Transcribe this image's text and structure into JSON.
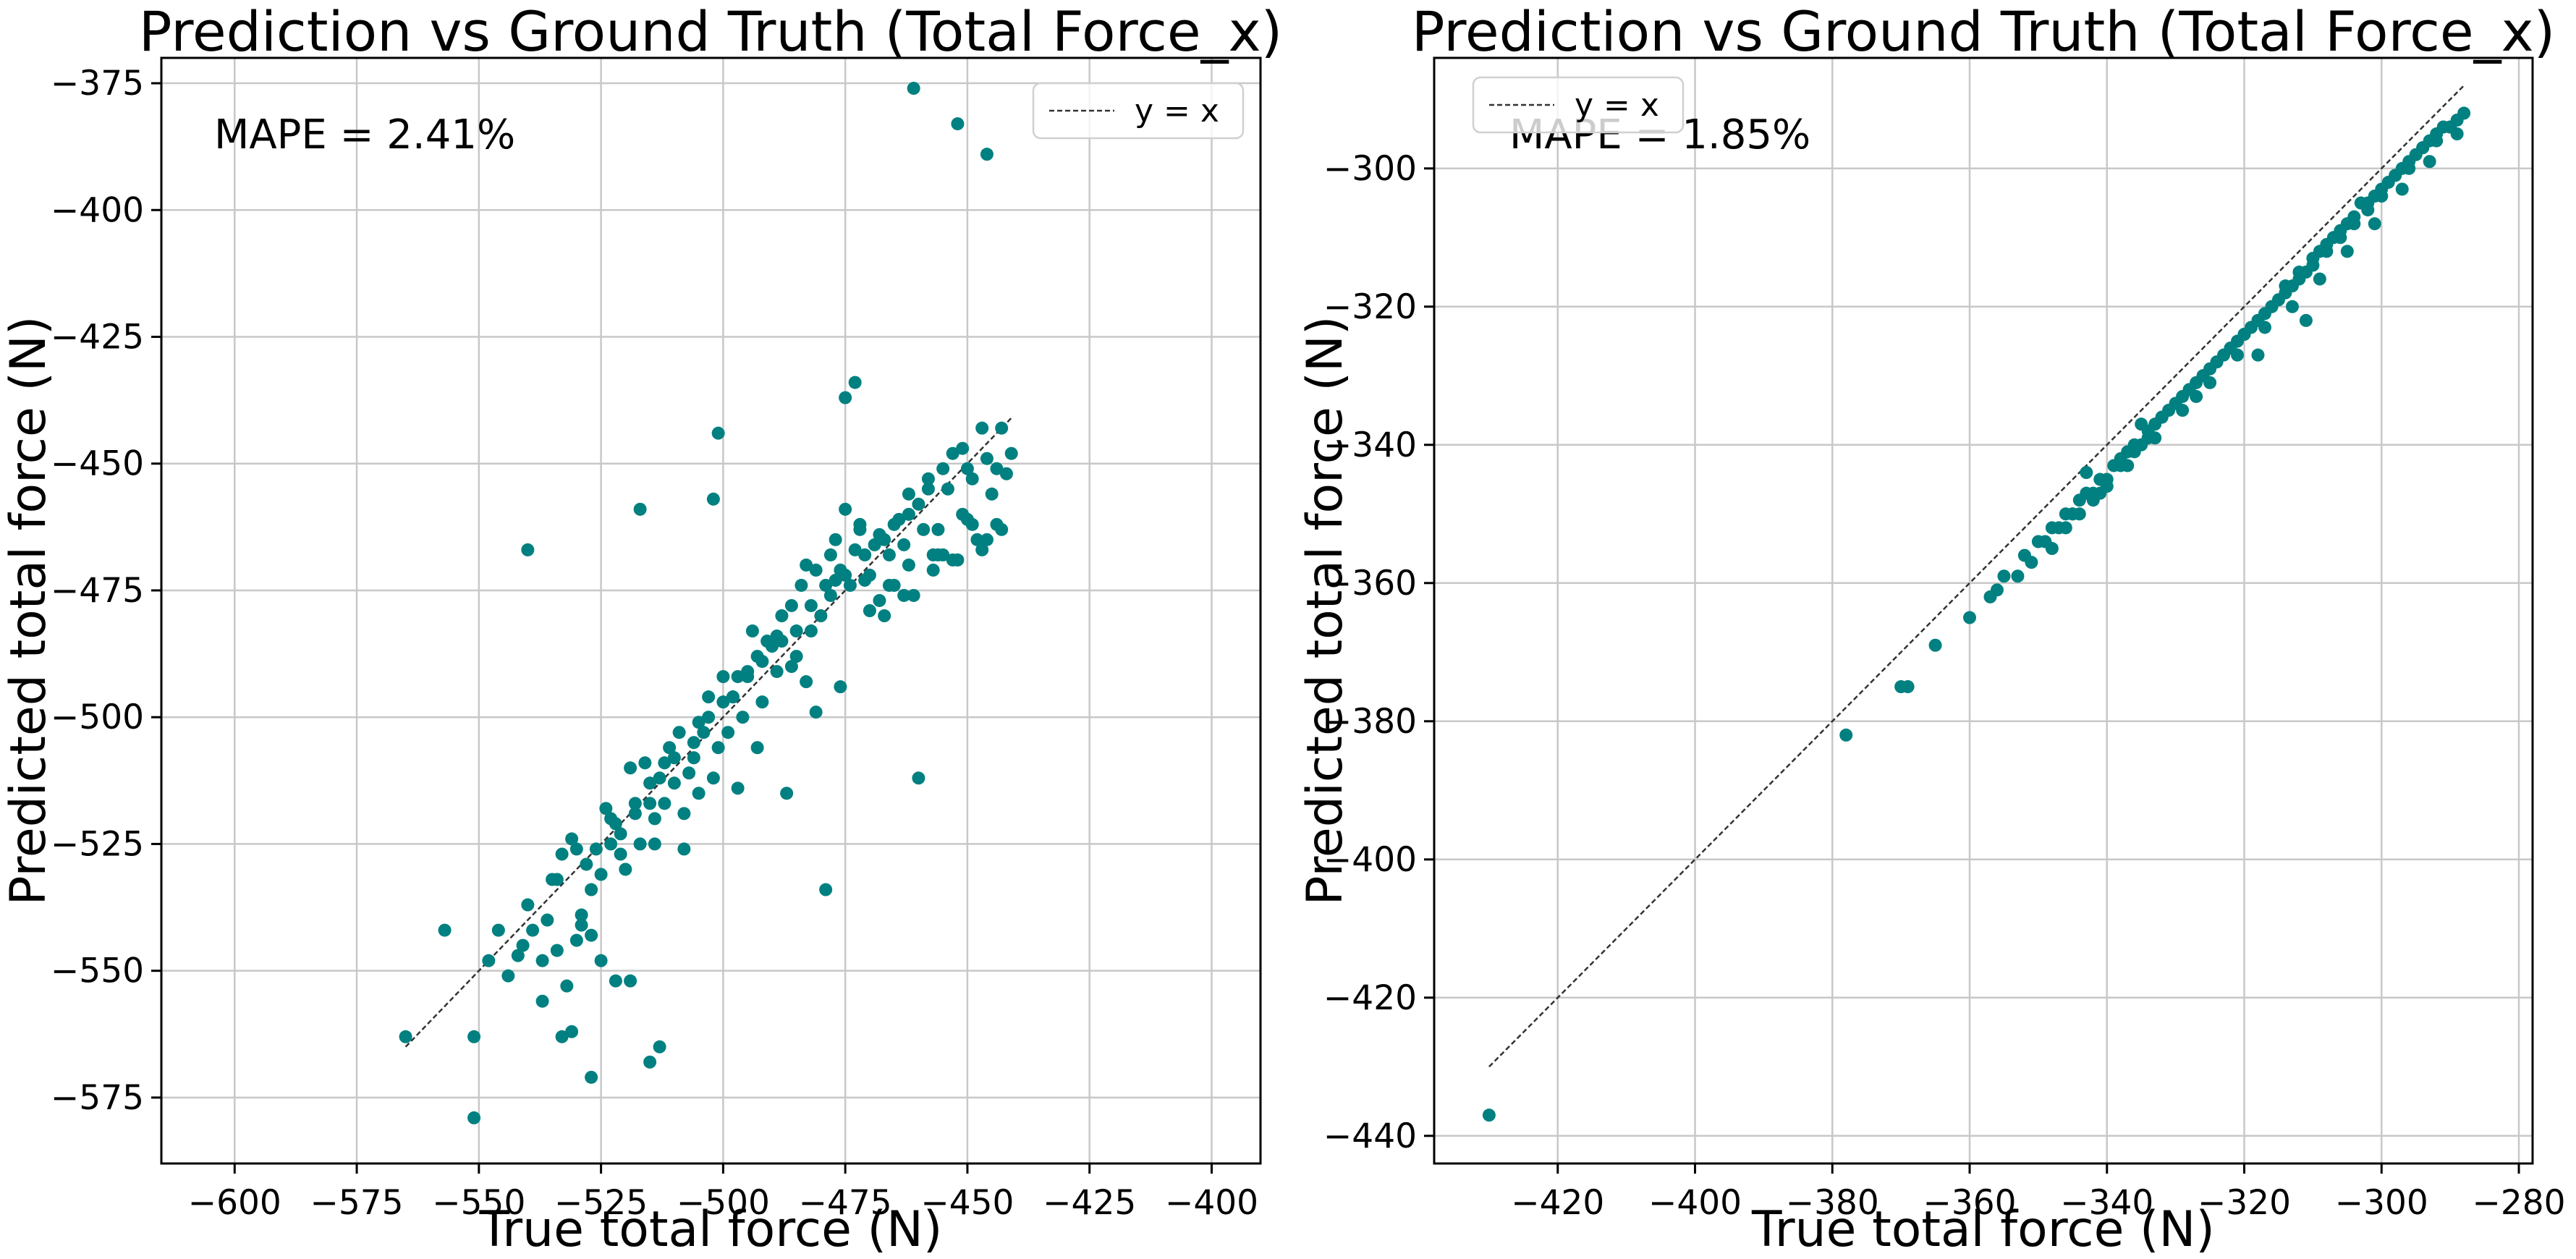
{
  "chart_data": [
    {
      "type": "scatter",
      "title": "Prediction vs Ground Truth (Total Force_x)",
      "xlabel": "True total force (N)",
      "ylabel": "Predicted total force (N)",
      "annotation": "MAPE = 2.41%",
      "legend": {
        "label": "y = x",
        "placement": "top-right"
      },
      "xlim": [
        -615,
        -390
      ],
      "ylim": [
        -588,
        -370
      ],
      "xticks": [
        -600,
        -575,
        -550,
        -525,
        -500,
        -475,
        -450,
        -425,
        -400
      ],
      "yticks": [
        -375,
        -400,
        -425,
        -450,
        -475,
        -500,
        -525,
        -550,
        -575
      ],
      "grid": true,
      "colors": {
        "points": "#008080",
        "reference": "#333333"
      },
      "reference_line": {
        "x": [
          -565,
          -441
        ],
        "y": [
          -565,
          -441
        ]
      },
      "series": [
        {
          "x": [
            -565,
            -557,
            -551,
            -551,
            -548,
            -546,
            -544,
            -542,
            -541,
            -540,
            -539,
            -537,
            -536,
            -535,
            -534,
            -533,
            -532,
            -531,
            -530,
            -529,
            -528,
            -527,
            -526,
            -525,
            -524,
            -523,
            -522,
            -521,
            -520,
            -519,
            -518,
            -517,
            -516,
            -515,
            -514,
            -513,
            -512,
            -511,
            -510,
            -509,
            -508,
            -507,
            -506,
            -505,
            -504,
            -503,
            -502,
            -501,
            -500,
            -499,
            -498,
            -497,
            -496,
            -495,
            -494,
            -493,
            -492,
            -491,
            -490,
            -489,
            -488,
            -487,
            -486,
            -485,
            -484,
            -483,
            -482,
            -481,
            -480,
            -479,
            -478,
            -477,
            -476,
            -475,
            -474,
            -473,
            -472,
            -471,
            -470,
            -469,
            -468,
            -467,
            -466,
            -465,
            -464,
            -463,
            -462,
            -461,
            -460,
            -459,
            -458,
            -457,
            -456,
            -455,
            -454,
            -453,
            -452,
            -451,
            -450,
            -449,
            -448,
            -447,
            -446,
            -445,
            -444,
            -443,
            -442,
            -441,
            -534,
            -530,
            -527,
            -522,
            -518,
            -515,
            -510,
            -506,
            -503,
            -498,
            -495,
            -492,
            -488,
            -485,
            -482,
            -478,
            -475,
            -471,
            -468,
            -465,
            -462,
            -458,
            -455,
            -451,
            -447,
            -443,
            -540,
            -517,
            -461,
            -452,
            -446,
            -501,
            -513,
            -479,
            -460,
            -515,
            -475,
            -473,
            -502,
            -525,
            -533,
            -531,
            -527,
            -514,
            -519,
            -523,
            -508,
            -500,
            -493,
            -486,
            -481,
            -476,
            -470,
            -466,
            -463,
            -457,
            -453,
            -449,
            -444,
            -537,
            -529,
            -521,
            -512,
            -505,
            -497,
            -489,
            -483,
            -477,
            -472,
            -467,
            -462,
            -456,
            -450,
            -446
          ],
          "y": [
            -563,
            -542,
            -563,
            -579,
            -548,
            -542,
            -551,
            -547,
            -545,
            -537,
            -542,
            -548,
            -540,
            -532,
            -546,
            -527,
            -553,
            -524,
            -544,
            -539,
            -529,
            -571,
            -526,
            -531,
            -518,
            -525,
            -552,
            -523,
            -530,
            -510,
            -517,
            -525,
            -509,
            -517,
            -520,
            -512,
            -509,
            -506,
            -513,
            -503,
            -526,
            -511,
            -508,
            -515,
            -503,
            -496,
            -512,
            -506,
            -492,
            -503,
            -496,
            -514,
            -500,
            -492,
            -483,
            -506,
            -497,
            -485,
            -486,
            -491,
            -480,
            -515,
            -478,
            -488,
            -474,
            -470,
            -483,
            -471,
            -480,
            -474,
            -468,
            -465,
            -471,
            -459,
            -474,
            -467,
            -462,
            -473,
            -472,
            -466,
            -477,
            -480,
            -468,
            -474,
            -461,
            -466,
            -460,
            -476,
            -458,
            -463,
            -455,
            -471,
            -468,
            -468,
            -455,
            -448,
            -469,
            -460,
            -451,
            -453,
            -465,
            -467,
            -449,
            -456,
            -462,
            -463,
            -452,
            -448,
            -532,
            -526,
            -534,
            -521,
            -519,
            -513,
            -508,
            -505,
            -500,
            -496,
            -491,
            -489,
            -485,
            -483,
            -478,
            -476,
            -472,
            -468,
            -464,
            -462,
            -456,
            -453,
            -451,
            -447,
            -443,
            -443,
            -467,
            -459,
            -376,
            -383,
            -389,
            -444,
            -565,
            -534,
            -512,
            -568,
            -437,
            -434,
            -457,
            -548,
            -563,
            -562,
            -543,
            -525,
            -552,
            -520,
            -519,
            -497,
            -488,
            -490,
            -499,
            -494,
            -479,
            -474,
            -476,
            -468,
            -469,
            -462,
            -451,
            -556,
            -541,
            -527,
            -517,
            -501,
            -492,
            -484,
            -493,
            -473,
            -463,
            -465,
            -470,
            -463,
            -461,
            -465
          ]
        }
      ]
    },
    {
      "type": "scatter",
      "title": "Prediction vs Ground Truth (Total Force_x)",
      "xlabel": "True total force (N)",
      "ylabel": "Predicted total force (N)",
      "annotation": "MAPE = 1.85%",
      "legend": {
        "label": "y = x",
        "placement": "top-left"
      },
      "xlim": [
        -438,
        -278
      ],
      "ylim": [
        -444,
        -284
      ],
      "xticks": [
        -420,
        -400,
        -380,
        -360,
        -340,
        -320,
        -300,
        -280
      ],
      "yticks": [
        -300,
        -320,
        -340,
        -360,
        -380,
        -400,
        -420,
        -440
      ],
      "grid": true,
      "colors": {
        "points": "#008080",
        "reference": "#333333"
      },
      "reference_line": {
        "x": [
          -430,
          -288
        ],
        "y": [
          -430,
          -288
        ]
      },
      "series": [
        {
          "x": [
            -430,
            -378,
            -370,
            -369,
            -365,
            -360,
            -357,
            -356,
            -355,
            -353,
            -352,
            -351,
            -350,
            -349,
            -348,
            -347,
            -346,
            -345,
            -344,
            -343,
            -342,
            -341,
            -340,
            -339,
            -338,
            -337,
            -336,
            -335,
            -334,
            -333,
            -332,
            -331,
            -330,
            -329,
            -328,
            -327,
            -326,
            -325,
            -324,
            -323,
            -322,
            -321,
            -320,
            -319,
            -318,
            -317,
            -316,
            -315,
            -314,
            -313,
            -312,
            -311,
            -310,
            -309,
            -308,
            -307,
            -306,
            -305,
            -304,
            -303,
            -302,
            -301,
            -300,
            -299,
            -298,
            -297,
            -296,
            -295,
            -294,
            -293,
            -292,
            -291,
            -290,
            -289,
            -288,
            -348,
            -346,
            -344,
            -342,
            -340,
            -338,
            -336,
            -334,
            -332,
            -330,
            -328,
            -326,
            -324,
            -322,
            -320,
            -318,
            -316,
            -314,
            -312,
            -310,
            -308,
            -306,
            -304,
            -302,
            -300,
            -298,
            -296,
            -294,
            -292,
            -290,
            -345,
            -341,
            -337,
            -333,
            -329,
            -325,
            -321,
            -317,
            -313,
            -309,
            -305,
            -301,
            -297,
            -293,
            -289,
            -311,
            -318,
            -327,
            -335,
            -343
          ],
          "y": [
            -437,
            -382,
            -375,
            -375,
            -369,
            -365,
            -362,
            -361,
            -359,
            -359,
            -356,
            -357,
            -354,
            -354,
            -352,
            -352,
            -350,
            -350,
            -348,
            -347,
            -347,
            -345,
            -345,
            -343,
            -342,
            -341,
            -340,
            -340,
            -338,
            -337,
            -336,
            -335,
            -334,
            -333,
            -332,
            -331,
            -330,
            -329,
            -328,
            -327,
            -326,
            -325,
            -324,
            -323,
            -322,
            -321,
            -320,
            -319,
            -317,
            -317,
            -315,
            -315,
            -313,
            -312,
            -311,
            -310,
            -309,
            -308,
            -307,
            -305,
            -305,
            -304,
            -303,
            -302,
            -301,
            -300,
            -299,
            -298,
            -297,
            -296,
            -295,
            -294,
            -294,
            -293,
            -292,
            -355,
            -352,
            -350,
            -348,
            -346,
            -343,
            -341,
            -339,
            -336,
            -334,
            -332,
            -330,
            -328,
            -326,
            -324,
            -322,
            -320,
            -318,
            -316,
            -314,
            -312,
            -310,
            -308,
            -306,
            -304,
            -301,
            -300,
            -297,
            -296,
            -294,
            -350,
            -347,
            -343,
            -339,
            -335,
            -331,
            -327,
            -323,
            -320,
            -316,
            -312,
            -308,
            -303,
            -299,
            -295,
            -322,
            -327,
            -333,
            -337,
            -344
          ]
        }
      ]
    }
  ]
}
